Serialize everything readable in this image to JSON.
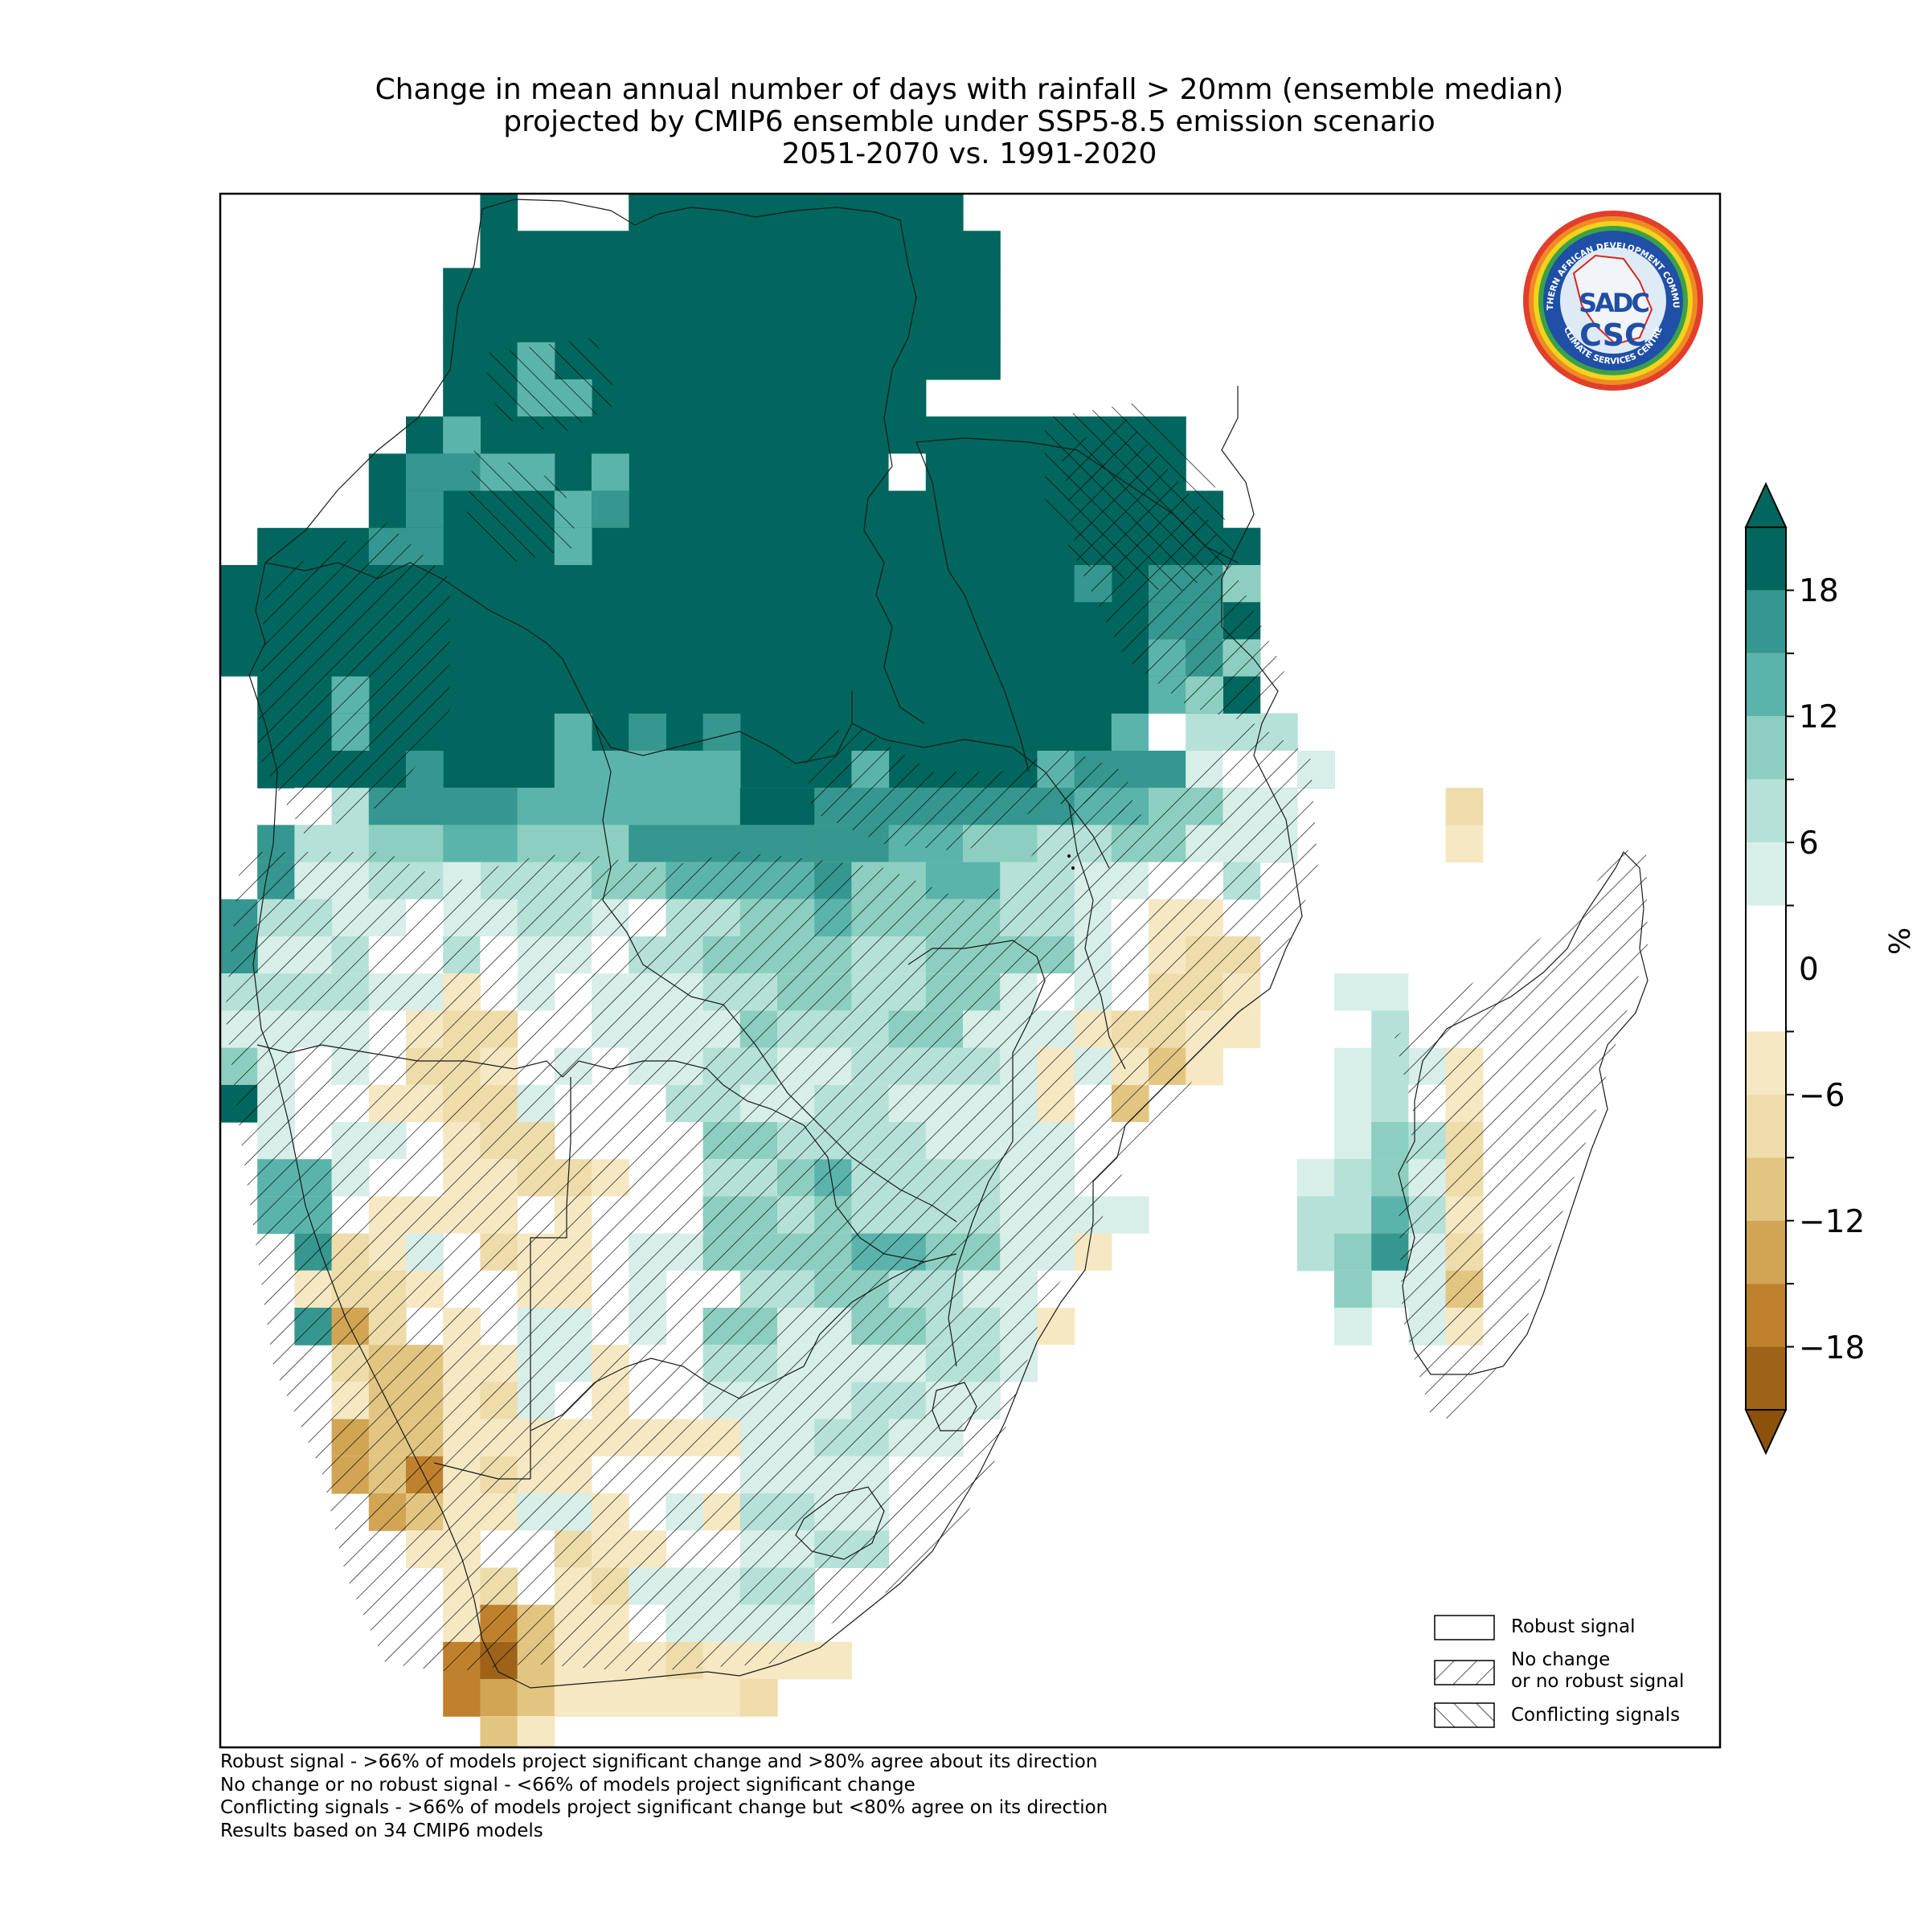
{
  "title": {
    "line1": "Change in mean annual number of days with rainfall > 20mm (ensemble median)",
    "line2": "projected by CMIP6 ensemble under SSP5-8.5 emission scenario",
    "line3": "2051-2070 vs. 1991-2020"
  },
  "logo": {
    "ring_text_top": "SOUTHERN AFRICAN DEVELOPMENT COMMUNITY",
    "ring_text_bottom": "CLIMATE SERVICES CENTRE",
    "mark_top": "SADC",
    "mark_bottom": "CSC",
    "colors": {
      "blue": "#1f4fa6",
      "orange": "#e8881c",
      "red": "#d7261e",
      "yellow": "#f2d21a",
      "green": "#3aa14a"
    }
  },
  "legend": {
    "items": [
      {
        "key": "robust",
        "label": "Robust signal"
      },
      {
        "key": "no_change",
        "label_line1": "No change",
        "label_line2": "or no robust signal"
      },
      {
        "key": "conflicting",
        "label": "Conflicting signals"
      }
    ]
  },
  "colorbar": {
    "unit": "%",
    "ticks": [
      "18",
      "12",
      "6",
      "0",
      "−6",
      "−12",
      "−18"
    ],
    "tick_values": [
      18,
      12,
      6,
      0,
      -6,
      -12,
      -18
    ],
    "bins": [
      {
        "from": 18,
        "to": 21,
        "color": "#01665e"
      },
      {
        "from": 15,
        "to": 18,
        "color": "#35978f"
      },
      {
        "from": 12,
        "to": 15,
        "color": "#5ab4ac"
      },
      {
        "from": 9,
        "to": 12,
        "color": "#8ccfc1"
      },
      {
        "from": 6,
        "to": 9,
        "color": "#b5e1d9"
      },
      {
        "from": 3,
        "to": 6,
        "color": "#d7eee9"
      },
      {
        "from": -3,
        "to": 3,
        "color": "#ffffff"
      },
      {
        "from": -6,
        "to": -3,
        "color": "#f6e8c3"
      },
      {
        "from": -9,
        "to": -6,
        "color": "#eedcaa"
      },
      {
        "from": -12,
        "to": -9,
        "color": "#e3c582"
      },
      {
        "from": -15,
        "to": -12,
        "color": "#d2a555"
      },
      {
        "from": -18,
        "to": -15,
        "color": "#bf812d"
      },
      {
        "from": -21,
        "to": -18,
        "color": "#9e6218"
      }
    ],
    "extend_max_color": "#01665e",
    "extend_min_color": "#8c510a"
  },
  "footnotes": [
    "Robust signal - >66% of models project significant change and >80% agree about its direction",
    "No change or no robust signal - <66% of models project significant change",
    "Conflicting signals - >66% of models project significant change but <80% agree on its direction",
    "Results based on 34 CMIP6 models"
  ]
}
